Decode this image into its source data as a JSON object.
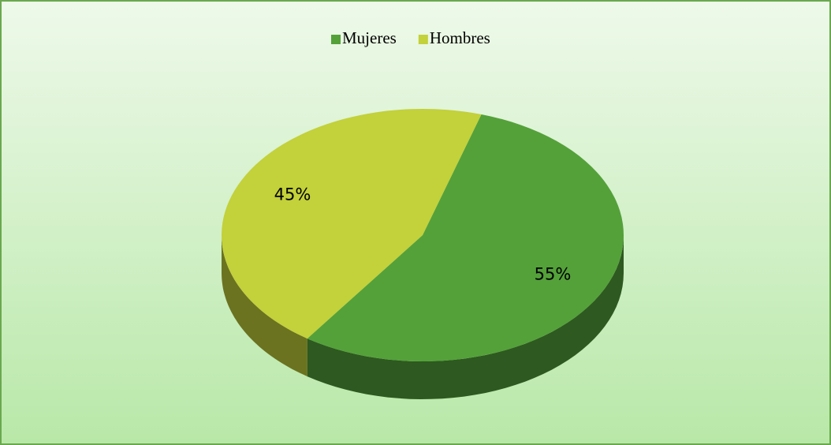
{
  "chart_data": {
    "type": "pie",
    "categories": [
      "Mujeres",
      "Hombres"
    ],
    "values": [
      55,
      45
    ],
    "value_labels": [
      "55%",
      "45%"
    ],
    "colors": [
      "#54a13a",
      "#c3d13a"
    ],
    "legend": "top"
  }
}
